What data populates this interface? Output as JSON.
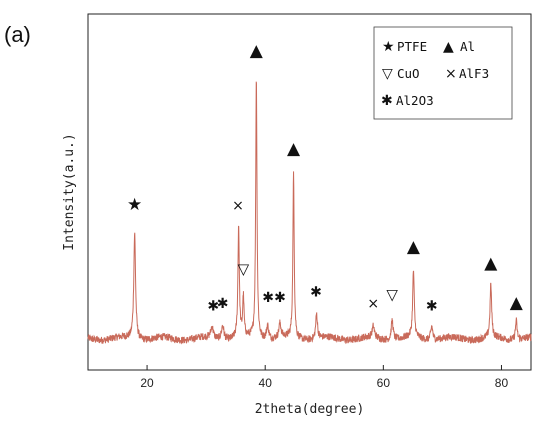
{
  "panel_label": "(a)",
  "chart_data": {
    "type": "line",
    "title": "",
    "xlabel": "2theta(degree)",
    "ylabel": "Intensity(a.u.)",
    "xlim": [
      10,
      85
    ],
    "ylim": [
      0,
      100
    ],
    "xticks": [
      20,
      40,
      60,
      80
    ],
    "yticks_shown": false,
    "grid": false,
    "line_color": "#c96a5a",
    "baseline": 3,
    "peaks": [
      {
        "x": 17.9,
        "y": 38,
        "w": 0.18
      },
      {
        "x": 31.0,
        "y": 4,
        "w": 0.25
      },
      {
        "x": 32.8,
        "y": 5,
        "w": 0.25
      },
      {
        "x": 35.5,
        "y": 40,
        "w": 0.14
      },
      {
        "x": 36.3,
        "y": 14,
        "w": 0.14
      },
      {
        "x": 38.5,
        "y": 94,
        "w": 0.13
      },
      {
        "x": 40.4,
        "y": 5,
        "w": 0.22
      },
      {
        "x": 42.5,
        "y": 5,
        "w": 0.22
      },
      {
        "x": 44.8,
        "y": 59,
        "w": 0.13
      },
      {
        "x": 48.7,
        "y": 9,
        "w": 0.18
      },
      {
        "x": 58.3,
        "y": 4,
        "w": 0.22
      },
      {
        "x": 61.5,
        "y": 7,
        "w": 0.2
      },
      {
        "x": 65.1,
        "y": 24,
        "w": 0.16
      },
      {
        "x": 68.2,
        "y": 5,
        "w": 0.2
      },
      {
        "x": 78.2,
        "y": 19,
        "w": 0.16
      },
      {
        "x": 82.5,
        "y": 7,
        "w": 0.17
      }
    ],
    "legend": {
      "position": "top-right",
      "entries": [
        {
          "symbol": "★",
          "label": "PTFE"
        },
        {
          "symbol": "▲",
          "label": "Al"
        },
        {
          "symbol": "▽",
          "label": "CuO"
        },
        {
          "symbol": "×",
          "label": "AlF3"
        },
        {
          "symbol": "✱",
          "label": "Al2O3"
        }
      ]
    },
    "annotations": [
      {
        "x": 17.9,
        "y": 49,
        "symbol": "★",
        "phase": "PTFE"
      },
      {
        "x": 38.5,
        "y": 104,
        "symbol": "▲",
        "phase": "Al"
      },
      {
        "x": 44.8,
        "y": 69,
        "symbol": "▲",
        "phase": "Al"
      },
      {
        "x": 65.1,
        "y": 34,
        "symbol": "▲",
        "phase": "Al"
      },
      {
        "x": 78.2,
        "y": 28,
        "symbol": "▲",
        "phase": "Al"
      },
      {
        "x": 82.5,
        "y": 14,
        "symbol": "▲",
        "phase": "Al"
      },
      {
        "x": 35.4,
        "y": 49,
        "symbol": "×",
        "phase": "AlF3"
      },
      {
        "x": 58.3,
        "y": 14,
        "symbol": "×",
        "phase": "AlF3"
      },
      {
        "x": 36.3,
        "y": 26,
        "symbol": "▽",
        "phase": "CuO"
      },
      {
        "x": 61.5,
        "y": 17,
        "symbol": "▽",
        "phase": "CuO"
      },
      {
        "x": 31.2,
        "y": 13,
        "symbol": "✱",
        "phase": "Al2O3"
      },
      {
        "x": 32.8,
        "y": 14,
        "symbol": "✱",
        "phase": "Al2O3"
      },
      {
        "x": 40.5,
        "y": 16,
        "symbol": "✱",
        "phase": "Al2O3"
      },
      {
        "x": 42.5,
        "y": 16,
        "symbol": "✱",
        "phase": "Al2O3"
      },
      {
        "x": 48.6,
        "y": 18,
        "symbol": "✱",
        "phase": "Al2O3"
      },
      {
        "x": 68.2,
        "y": 13,
        "symbol": "✱",
        "phase": "Al2O3"
      }
    ]
  }
}
